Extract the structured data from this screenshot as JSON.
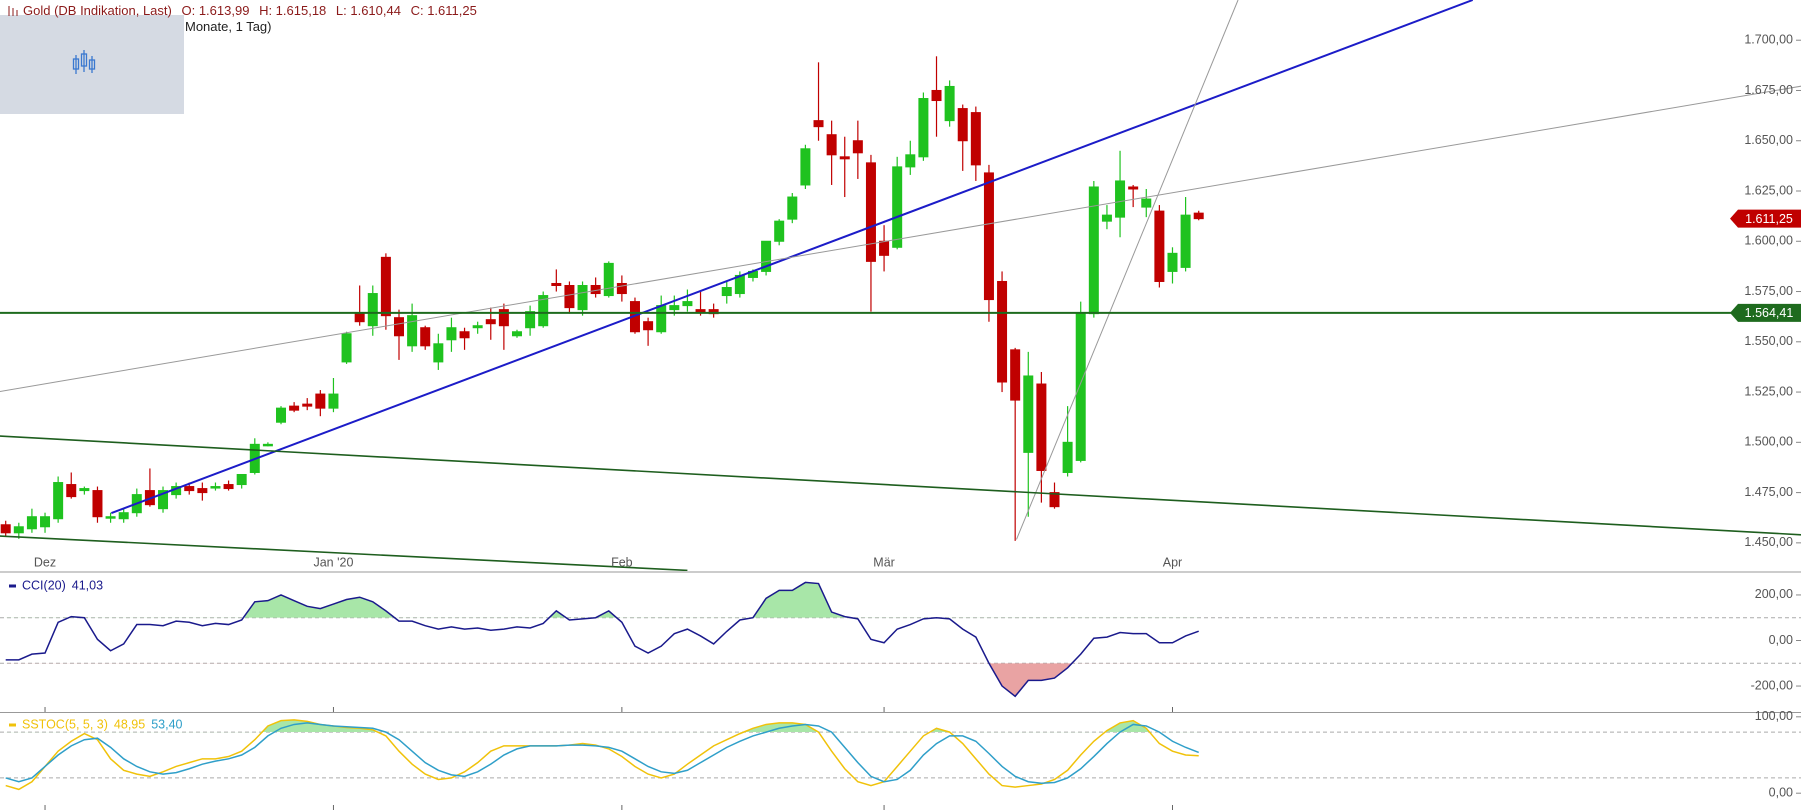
{
  "chart_data": [
    {
      "type": "candlestick",
      "title": "Gold (DB Indikation, Last)",
      "subtitle": "Monate, 1 Tag)",
      "ohlc_labels": [
        "O: 1.613,99",
        "H: 1.615,18",
        "L: 1.610,44",
        "C: 1.611,25"
      ],
      "categories": [
        null,
        null,
        null,
        "Dez",
        null,
        null,
        null,
        null,
        null,
        null,
        null,
        null,
        null,
        null,
        null,
        null,
        null,
        null,
        null,
        null,
        null,
        null,
        null,
        null,
        null,
        "Jan '20",
        null,
        null,
        null,
        null,
        null,
        null,
        null,
        null,
        null,
        null,
        null,
        null,
        null,
        null,
        null,
        null,
        null,
        null,
        null,
        null,
        null,
        "Feb",
        null,
        null,
        null,
        null,
        null,
        null,
        null,
        null,
        null,
        null,
        null,
        null,
        null,
        null,
        null,
        null,
        null,
        null,
        null,
        "Mär",
        null,
        null,
        null,
        null,
        null,
        null,
        null,
        null,
        null,
        null,
        null,
        null,
        null,
        null,
        null,
        null,
        null,
        null,
        null,
        null,
        null,
        "Apr",
        null,
        null
      ],
      "open": [
        1459,
        1455,
        1457,
        1458,
        1462,
        1479,
        1476,
        1476,
        1463,
        1462,
        1465,
        1476,
        1467,
        1474,
        1478,
        1477,
        1478,
        1479,
        1479,
        1485,
        1499,
        1510,
        1518,
        1519,
        1524,
        1517,
        1540,
        1564,
        1558,
        1592,
        1562,
        1548,
        1557,
        1540,
        1551,
        1555,
        1557,
        1561,
        1566,
        1553,
        1557,
        1558,
        1579,
        1578,
        1566,
        1578,
        1573,
        1579,
        1570,
        1560,
        1555,
        1566,
        1568,
        1566,
        1566,
        1573,
        1574,
        1582,
        1585,
        1600,
        1611,
        1628,
        1660,
        1653,
        1642,
        1650,
        1639,
        1600,
        1597,
        1637,
        1642,
        1675,
        1660,
        1666,
        1664,
        1634,
        1580,
        1546,
        1495,
        1529,
        1475,
        1485,
        1491,
        1564,
        1610,
        1612,
        1627,
        1617,
        1615,
        1585,
        1587,
        1613.99
      ],
      "high": [
        1461,
        1460,
        1467,
        1465,
        1483,
        1485,
        1478,
        1478,
        1465,
        1467,
        1477,
        1487,
        1478,
        1480,
        1480,
        1480,
        1480,
        1481,
        1484,
        1502,
        1500,
        1518,
        1520,
        1522,
        1526,
        1532,
        1555,
        1578,
        1578,
        1594,
        1566,
        1569,
        1558,
        1554,
        1562,
        1557,
        1560,
        1567,
        1569,
        1556,
        1568,
        1575,
        1586,
        1580,
        1580,
        1582,
        1590,
        1583,
        1572,
        1562,
        1573,
        1573,
        1576,
        1575,
        1569,
        1580,
        1585,
        1586,
        1600,
        1611,
        1624,
        1648,
        1689,
        1660,
        1652,
        1660,
        1643,
        1608,
        1642,
        1650,
        1674,
        1692,
        1680,
        1668,
        1667,
        1638,
        1585,
        1547,
        1545,
        1535,
        1480,
        1518,
        1570,
        1630,
        1618,
        1645,
        1628,
        1626,
        1618,
        1597,
        1622,
        1615.18
      ],
      "low": [
        1453,
        1452,
        1455,
        1455,
        1460,
        1472,
        1474,
        1460,
        1460,
        1460,
        1463,
        1468,
        1465,
        1472,
        1474,
        1471,
        1476,
        1476,
        1477,
        1484,
        1498,
        1509,
        1515,
        1516,
        1513,
        1515,
        1539,
        1558,
        1553,
        1556,
        1541,
        1545,
        1546,
        1536,
        1545,
        1546,
        1554,
        1551,
        1546,
        1552,
        1553,
        1557,
        1575,
        1564,
        1563,
        1572,
        1572,
        1570,
        1554,
        1548,
        1554,
        1563,
        1565,
        1563,
        1562,
        1569,
        1572,
        1580,
        1583,
        1598,
        1609,
        1626,
        1650,
        1628,
        1622,
        1631,
        1565,
        1585,
        1596,
        1633,
        1640,
        1652,
        1657,
        1635,
        1630,
        1560,
        1525,
        1451,
        1463,
        1470,
        1467,
        1483,
        1490,
        1562,
        1606,
        1602,
        1617,
        1612,
        1577,
        1579,
        1585,
        1610.44
      ],
      "close": [
        1455,
        1458,
        1463,
        1463,
        1480,
        1473,
        1477,
        1463,
        1463,
        1465,
        1474,
        1469,
        1476,
        1478,
        1476,
        1475,
        1478,
        1477,
        1484,
        1499,
        1499,
        1517,
        1516,
        1518,
        1517,
        1524,
        1554,
        1560,
        1574,
        1563,
        1553,
        1563,
        1548,
        1549,
        1557,
        1552,
        1558,
        1559,
        1558,
        1555,
        1565,
        1573,
        1578,
        1567,
        1578,
        1574,
        1589,
        1574,
        1555,
        1556,
        1568,
        1568,
        1570,
        1565,
        1564,
        1577,
        1583,
        1585,
        1600,
        1610,
        1622,
        1646,
        1657,
        1643,
        1641,
        1644,
        1590,
        1593,
        1637,
        1643,
        1671,
        1670,
        1677,
        1650,
        1638,
        1571,
        1530,
        1521,
        1533,
        1486,
        1468,
        1500,
        1564,
        1627,
        1613,
        1630,
        1626,
        1621,
        1580,
        1594,
        1613,
        1611.25
      ],
      "up_color": "#1fc21f",
      "down_color": "#c00000",
      "ylim": [
        1436,
        1720
      ],
      "yticks": [
        {
          "value": 1450,
          "label": "1.450,00"
        },
        {
          "value": 1475,
          "label": "1.475,00"
        },
        {
          "value": 1500,
          "label": "1.500,00"
        },
        {
          "value": 1525,
          "label": "1.525,00"
        },
        {
          "value": 1550,
          "label": "1.550,00"
        },
        {
          "value": 1575,
          "label": "1.575,00"
        },
        {
          "value": 1600,
          "label": "1.600,00"
        },
        {
          "value": 1625,
          "label": "1.625,00"
        },
        {
          "value": 1650,
          "label": "1.650,00"
        },
        {
          "value": 1675,
          "label": "1.675,00"
        },
        {
          "value": 1700,
          "label": "1.700,00"
        }
      ],
      "trendlines": [
        {
          "from": [
            8.06,
            1464.8
          ],
          "to": [
            111.9,
            1720
          ],
          "color": "#1c1cc8",
          "width": 2
        },
        {
          "from": [
            -0.44,
            1525.3
          ],
          "to": [
            137,
            1677.2
          ],
          "color": "#999999",
          "width": 1
        },
        {
          "from": [
            77.1,
            1451.7
          ],
          "to": [
            94.0,
            1720
          ],
          "color": "#999999",
          "width": 1
        },
        {
          "from": [
            -0.44,
            1503.1
          ],
          "to": [
            137,
            1454.0
          ],
          "color": "#1e5e1e",
          "width": 1.6
        },
        {
          "from": [
            -0.44,
            1453.4
          ],
          "to": [
            52.0,
            1436.3
          ],
          "color": "#1e5e1e",
          "width": 1.6
        }
      ],
      "price_labels": [
        {
          "value": 1611.25,
          "label": "1.611,25",
          "color": "#c00000",
          "line": false
        },
        {
          "value": 1564.41,
          "label": "1.564,41",
          "color": "#1e6b1e",
          "line": true
        }
      ]
    },
    {
      "type": "line",
      "series": [
        {
          "name": "CCI(20)",
          "color": "#1a1a8c",
          "value_label": "41,03",
          "values": [
            -85,
            -85,
            -60,
            -55,
            80,
            105,
            100,
            5,
            -45,
            -15,
            70,
            70,
            65,
            85,
            80,
            65,
            75,
            70,
            90,
            170,
            175,
            200,
            175,
            150,
            140,
            160,
            180,
            190,
            170,
            130,
            85,
            85,
            65,
            50,
            60,
            50,
            55,
            45,
            50,
            60,
            55,
            75,
            130,
            90,
            95,
            100,
            130,
            80,
            -25,
            -55,
            -25,
            30,
            50,
            20,
            -15,
            40,
            90,
            100,
            185,
            220,
            220,
            255,
            250,
            125,
            105,
            95,
            5,
            -10,
            50,
            70,
            95,
            100,
            95,
            50,
            15,
            -100,
            -200,
            -245,
            -175,
            -175,
            -165,
            -120,
            -60,
            10,
            15,
            35,
            30,
            30,
            -10,
            -10,
            20,
            41.03
          ]
        }
      ],
      "ylim": [
        -314,
        292
      ],
      "yticks": [
        {
          "value": 200,
          "label": "200,00"
        },
        {
          "value": 0,
          "label": "0,00"
        },
        {
          "value": -200,
          "label": "-200,00"
        }
      ],
      "levels": [
        100,
        -100
      ],
      "fill_above_color": "#a8e6a8",
      "fill_below_color": "#e9a3a3"
    },
    {
      "type": "line",
      "series": [
        {
          "name": "SSTOC(5, 5, 3)",
          "color": "#f0c20a",
          "value_label": "48,95",
          "values": [
            10,
            5,
            15,
            35,
            55,
            68,
            78,
            70,
            45,
            30,
            25,
            22,
            28,
            35,
            40,
            45,
            45,
            48,
            55,
            70,
            88,
            95,
            96,
            94,
            90,
            88,
            86,
            85,
            83,
            75,
            55,
            38,
            25,
            18,
            20,
            28,
            40,
            55,
            62,
            62,
            62,
            62,
            62,
            63,
            65,
            63,
            58,
            48,
            35,
            25,
            20,
            25,
            38,
            50,
            62,
            70,
            78,
            85,
            90,
            92,
            92,
            90,
            80,
            55,
            32,
            15,
            10,
            15,
            35,
            55,
            75,
            85,
            80,
            65,
            45,
            25,
            10,
            8,
            10,
            12,
            18,
            30,
            50,
            68,
            82,
            92,
            95,
            85,
            65,
            55,
            50,
            48.95
          ]
        },
        {
          "color": "#2f9fc9",
          "value_label": "53,40",
          "values": [
            20,
            15,
            20,
            35,
            50,
            62,
            70,
            72,
            60,
            45,
            35,
            28,
            25,
            27,
            32,
            38,
            42,
            45,
            50,
            60,
            75,
            85,
            90,
            92,
            90,
            88,
            87,
            86,
            85,
            80,
            70,
            55,
            40,
            30,
            24,
            22,
            28,
            38,
            50,
            58,
            62,
            62,
            62,
            63,
            63,
            62,
            60,
            55,
            45,
            35,
            28,
            26,
            30,
            40,
            50,
            60,
            68,
            75,
            80,
            85,
            88,
            90,
            88,
            80,
            60,
            40,
            22,
            15,
            18,
            30,
            50,
            65,
            75,
            75,
            68,
            52,
            35,
            22,
            15,
            13,
            14,
            20,
            32,
            48,
            65,
            80,
            90,
            88,
            80,
            68,
            60,
            53.4
          ]
        }
      ],
      "ylim": [
        -22,
        105
      ],
      "yticks": [
        {
          "value": 100,
          "label": "100,00"
        },
        {
          "value": 0,
          "label": "0,00"
        }
      ],
      "levels": [
        80,
        20
      ],
      "fill_above_color": "#a8e6a8"
    }
  ]
}
